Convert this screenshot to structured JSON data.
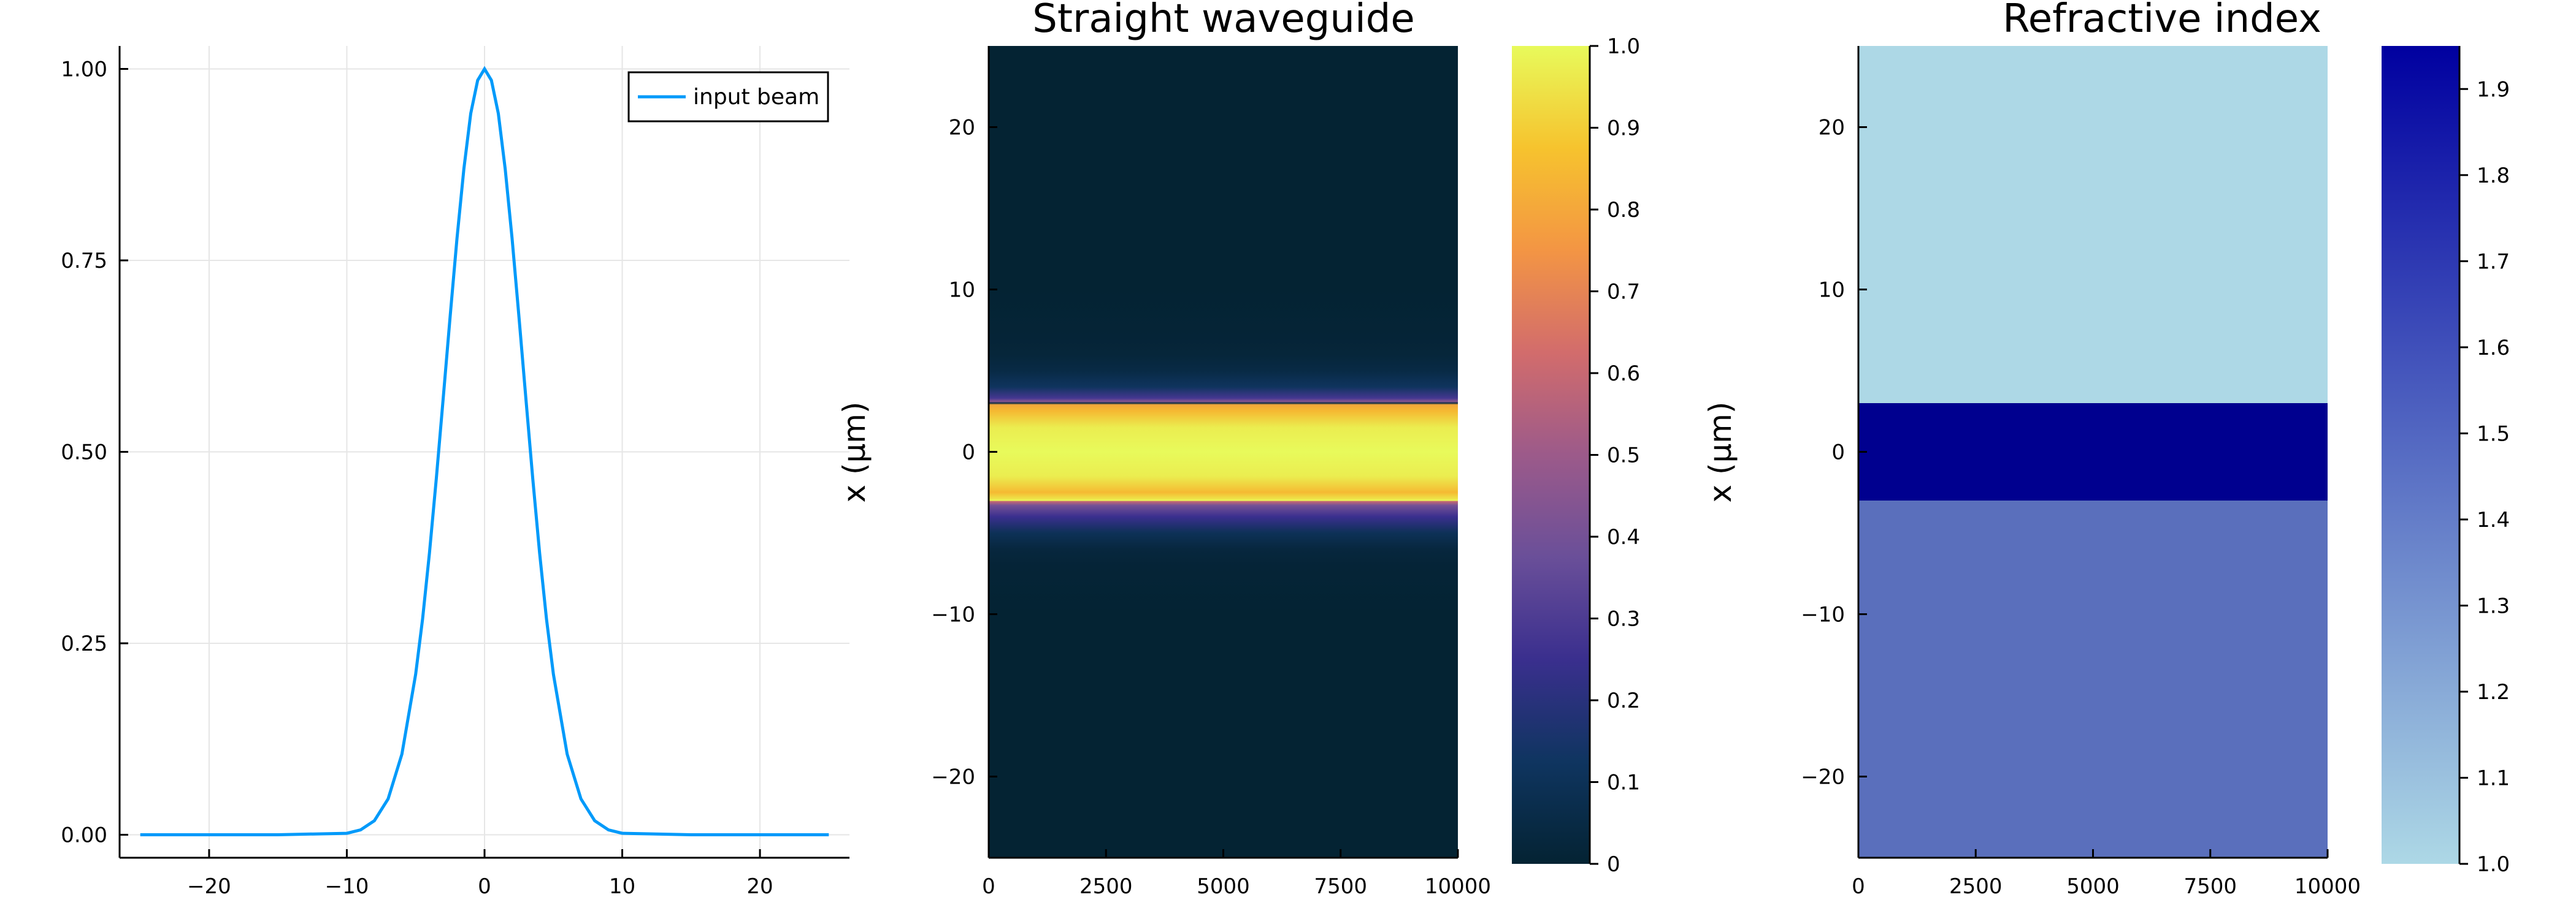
{
  "chart_data": [
    {
      "type": "line",
      "title": "",
      "xlabel": "",
      "ylabel": "",
      "xlim": [
        -26.5,
        26.5
      ],
      "ylim": [
        -0.03,
        1.03
      ],
      "xticks": [
        -20,
        -10,
        0,
        10,
        20
      ],
      "xtick_labels": [
        "−20",
        "−10",
        "0",
        "10",
        "20"
      ],
      "yticks": [
        0,
        0.25,
        0.5,
        0.75,
        1.0
      ],
      "ytick_labels": [
        "0.00",
        "0.25",
        "0.50",
        "0.75",
        "1.00"
      ],
      "grid": true,
      "legend_position": "top-right",
      "series": [
        {
          "name": "input beam",
          "color": "#009AFA",
          "x": [
            -25,
            -20,
            -15,
            -10,
            -9,
            -8,
            -7,
            -6,
            -5,
            -4.5,
            -4,
            -3.5,
            -3,
            -2.5,
            -2,
            -1.5,
            -1,
            -0.5,
            0,
            0.5,
            1,
            1.5,
            2,
            2.5,
            3,
            3.5,
            4,
            4.5,
            5,
            6,
            7,
            8,
            9,
            10,
            15,
            20,
            25
          ],
          "y": [
            0,
            0,
            0,
            0.0019,
            0.0063,
            0.0183,
            0.0468,
            0.1054,
            0.2096,
            0.2818,
            0.3679,
            0.4653,
            0.5698,
            0.6766,
            0.7788,
            0.8694,
            0.9418,
            0.9851,
            1.0,
            0.9851,
            0.9418,
            0.8694,
            0.7788,
            0.6766,
            0.5698,
            0.4653,
            0.3679,
            0.2818,
            0.2096,
            0.1054,
            0.0468,
            0.0183,
            0.0063,
            0.0019,
            0,
            0,
            0
          ]
        }
      ]
    },
    {
      "type": "heatmap",
      "title": "Straight waveguide",
      "xlabel": "",
      "ylabel": "x (μm)",
      "xlim": [
        0,
        10000
      ],
      "ylim": [
        -25,
        25
      ],
      "xticks": [
        0,
        2500,
        5000,
        7500,
        10000
      ],
      "xtick_labels": [
        "0",
        "2500",
        "5000",
        "7500",
        "10000"
      ],
      "yticks": [
        -20,
        -10,
        0,
        10,
        20
      ],
      "ytick_labels": [
        "−20",
        "−10",
        "0",
        "10",
        "20"
      ],
      "grid": false,
      "colormap": "thermal",
      "colormap_stops": [
        "#042333",
        "#0F3560",
        "#3A2F8E",
        "#6A4F99",
        "#9C5A8A",
        "#D26C6C",
        "#F39544",
        "#F6C32E",
        "#E8FA5B"
      ],
      "colorbar": {
        "range": [
          0,
          1
        ],
        "ticks": [
          0,
          0.1,
          0.2,
          0.3,
          0.4,
          0.5,
          0.6,
          0.7,
          0.8,
          0.9,
          1.0
        ],
        "tick_labels": [
          "0",
          "0.1",
          "0.2",
          "0.3",
          "0.4",
          "0.5",
          "0.6",
          "0.7",
          "0.8",
          "0.9",
          "1.0"
        ]
      },
      "y_profile": [
        -25,
        -10,
        -7,
        -6,
        -5,
        -4,
        -3.3,
        -3.05,
        -3,
        -2.9,
        -2.5,
        -1.5,
        0,
        1.5,
        2.5,
        2.9,
        3,
        3.1,
        3.3,
        4,
        5,
        6,
        7,
        10,
        25
      ],
      "intensity_profile": [
        0,
        0,
        0.01,
        0.03,
        0.1,
        0.25,
        0.4,
        0.6,
        1.0,
        0.95,
        0.85,
        0.97,
        1.0,
        0.97,
        0.85,
        0.8,
        0.05,
        0.45,
        0.28,
        0.12,
        0.05,
        0.02,
        0.01,
        0,
        0
      ]
    },
    {
      "type": "heatmap",
      "title": "Refractive index",
      "xlabel": "",
      "ylabel": "x (μm)",
      "xlim": [
        0,
        10000
      ],
      "ylim": [
        -25,
        25
      ],
      "xticks": [
        0,
        2500,
        5000,
        7500,
        10000
      ],
      "xtick_labels": [
        "0",
        "2500",
        "5000",
        "7500",
        "10000"
      ],
      "yticks": [
        -20,
        -10,
        0,
        10,
        20
      ],
      "ytick_labels": [
        "−20",
        "−10",
        "0",
        "10",
        "20"
      ],
      "grid": false,
      "colormap_stops": [
        "#ADD8E6",
        "#0000A0"
      ],
      "colorbar": {
        "range": [
          1.0,
          1.95
        ],
        "ticks": [
          1.0,
          1.1,
          1.2,
          1.3,
          1.4,
          1.5,
          1.6,
          1.7,
          1.8,
          1.9
        ],
        "tick_labels": [
          "1.0",
          "1.1",
          "1.2",
          "1.3",
          "1.4",
          "1.5",
          "1.6",
          "1.7",
          "1.8",
          "1.9"
        ]
      },
      "layers": [
        {
          "x_from": -25,
          "x_to": -3,
          "value": 1.5,
          "color": "#5A6FBC"
        },
        {
          "x_from": -3,
          "x_to": 3,
          "value": 1.95,
          "color": "#00008F"
        },
        {
          "x_from": 3,
          "x_to": 25,
          "value": 1.0,
          "color": "#ADD8E6"
        }
      ]
    }
  ]
}
